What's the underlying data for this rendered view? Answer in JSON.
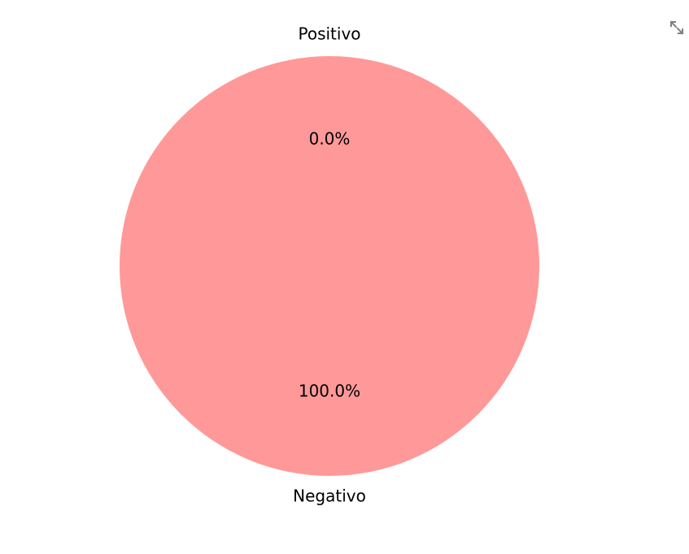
{
  "chart_data": {
    "type": "pie",
    "labels": [
      "Positivo",
      "Negativo"
    ],
    "values": [
      0.0,
      100.0
    ],
    "percent_labels": [
      "0.0%",
      "100.0%"
    ],
    "colors": [
      "#66b3ff",
      "#ff9999"
    ],
    "start_angle_deg": 90,
    "direction": "counterclockwise"
  },
  "toolbar": {
    "fullscreen_icon": "expand-arrows-icon",
    "icon_color": "#808080"
  }
}
